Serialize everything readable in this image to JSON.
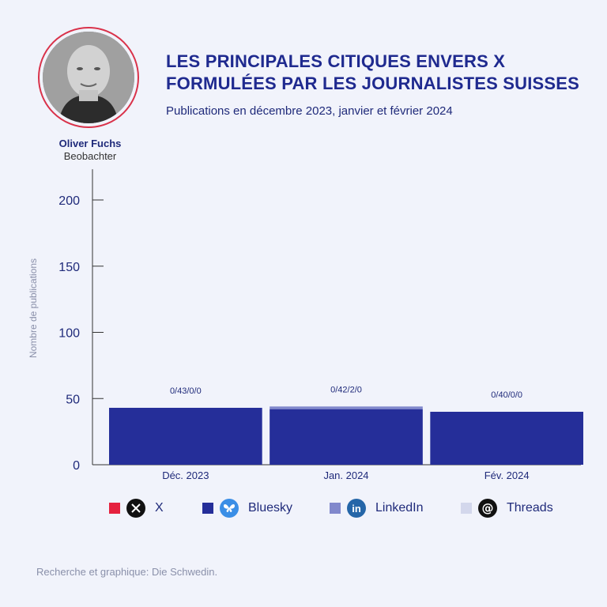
{
  "header": {
    "title_line1": "LES PRINCIPALES CITIQUES ENVERS X",
    "title_line2": "FORMULÉES PAR LES JOURNALISTES SUISSES",
    "subtitle": "Publications en décembre 2023, janvier et février 2024"
  },
  "author": {
    "name": "Oliver Fuchs",
    "organization": "Beobachter"
  },
  "legend": [
    {
      "label": "X",
      "color": "#e5213e",
      "icon": "x-logo-icon",
      "icon_color": "#111111"
    },
    {
      "label": "Bluesky",
      "color": "#252e99",
      "icon": "bluesky-butterfly-icon",
      "icon_color": "#3a8ee6"
    },
    {
      "label": "LinkedIn",
      "color": "#8188cc",
      "icon": "linkedin-icon",
      "icon_color": "#2566a8"
    },
    {
      "label": "Threads",
      "color": "#d3d7ec",
      "icon": "threads-icon",
      "icon_color": "#111111"
    }
  ],
  "chart_data": {
    "type": "bar",
    "stacked": true,
    "categories": [
      "Déc. 2023",
      "Jan. 2024",
      "Fév. 2024"
    ],
    "series": [
      {
        "name": "X",
        "values": [
          0,
          0,
          0
        ],
        "color": "#e5213e"
      },
      {
        "name": "Bluesky",
        "values": [
          43,
          42,
          40
        ],
        "color": "#252e99"
      },
      {
        "name": "LinkedIn",
        "values": [
          0,
          2,
          0
        ],
        "color": "#8188cc"
      },
      {
        "name": "Threads",
        "values": [
          0,
          0,
          0
        ],
        "color": "#d3d7ec"
      }
    ],
    "data_labels": [
      "0/43/0/0",
      "0/42/2/0",
      "0/40/0/0"
    ],
    "ylabel": "Nombre de publications",
    "yticks": [
      0,
      50,
      100,
      150,
      200
    ],
    "ylim": [
      0,
      225
    ],
    "grid": false
  },
  "footer": {
    "credit": "Recherche et graphique: Die Schwedin."
  }
}
